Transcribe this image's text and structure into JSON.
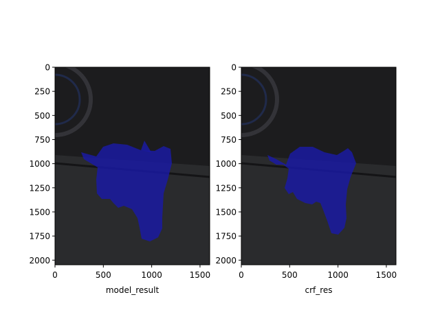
{
  "chart_data": [
    {
      "type": "image",
      "xlabel": "model_result",
      "x_ticks": [
        0,
        500,
        1000,
        1500
      ],
      "y_ticks": [
        0,
        250,
        500,
        750,
        1000,
        1250,
        1500,
        1750,
        2000
      ],
      "xlim": [
        0,
        1600
      ],
      "ylim": [
        2048,
        0
      ],
      "overlay_color": "#1a1aa6",
      "background_color": "#1c1c1e",
      "floor_color": "#2a2b2d"
    },
    {
      "type": "image",
      "xlabel": "crf_res",
      "x_ticks": [
        0,
        500,
        1000,
        1500
      ],
      "y_ticks": [
        0,
        250,
        500,
        750,
        1000,
        1250,
        1500,
        1750,
        2000
      ],
      "xlim": [
        0,
        1600
      ],
      "ylim": [
        2048,
        0
      ],
      "overlay_color": "#1a1aa6",
      "background_color": "#1c1c1e",
      "floor_color": "#2a2b2d"
    }
  ]
}
